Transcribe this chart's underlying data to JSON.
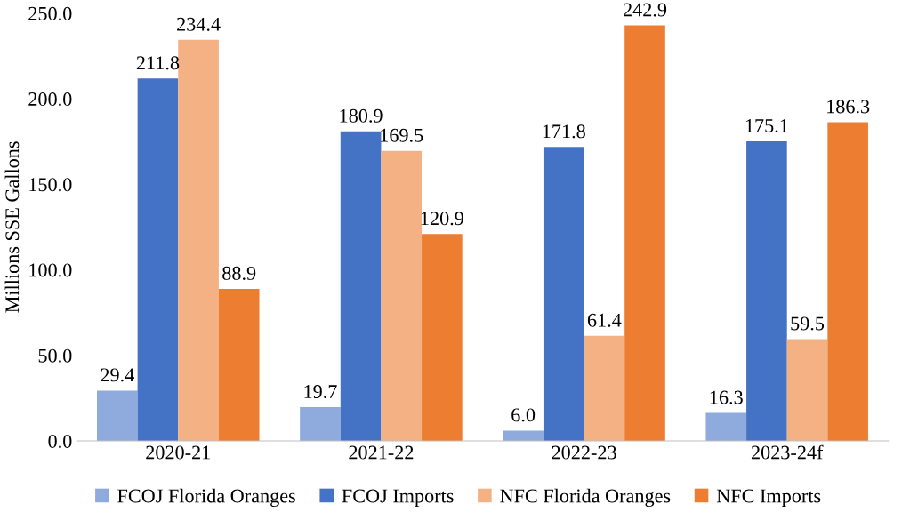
{
  "chart_data": {
    "type": "bar",
    "ylabel": "Millions SSE Gallons",
    "categories": [
      "2020-21",
      "2021-22",
      "2022-23",
      "2023-24f"
    ],
    "series": [
      {
        "name": "FCOJ Florida Oranges",
        "color": "#8faadc",
        "values": [
          29.4,
          19.7,
          6.0,
          16.3
        ],
        "value_labels": [
          "29.4",
          "19.7",
          "6.0",
          "16.3"
        ]
      },
      {
        "name": "FCOJ Imports",
        "color": "#4472c4",
        "values": [
          211.8,
          180.9,
          171.8,
          175.1
        ],
        "value_labels": [
          "211.8",
          "180.9",
          "171.8",
          "175.1"
        ]
      },
      {
        "name": "NFC Florida Oranges",
        "color": "#f4b183",
        "values": [
          234.4,
          169.5,
          61.4,
          59.5
        ],
        "value_labels": [
          "234.4",
          "169.5",
          "61.4",
          "59.5"
        ]
      },
      {
        "name": "NFC Imports",
        "color": "#ed7d31",
        "values": [
          88.9,
          120.9,
          242.9,
          186.3
        ],
        "value_labels": [
          "88.9",
          "120.9",
          "242.9",
          "186.3"
        ]
      }
    ],
    "ylim": [
      0,
      250
    ],
    "yticks": [
      {
        "value": 0,
        "label": "0.0"
      },
      {
        "value": 50,
        "label": "50.0"
      },
      {
        "value": 100,
        "label": "100.0"
      },
      {
        "value": 150,
        "label": "150.0"
      },
      {
        "value": 200,
        "label": "200.0"
      },
      {
        "value": 250,
        "label": "250.0"
      }
    ],
    "grid": false,
    "legend": "bottom"
  }
}
